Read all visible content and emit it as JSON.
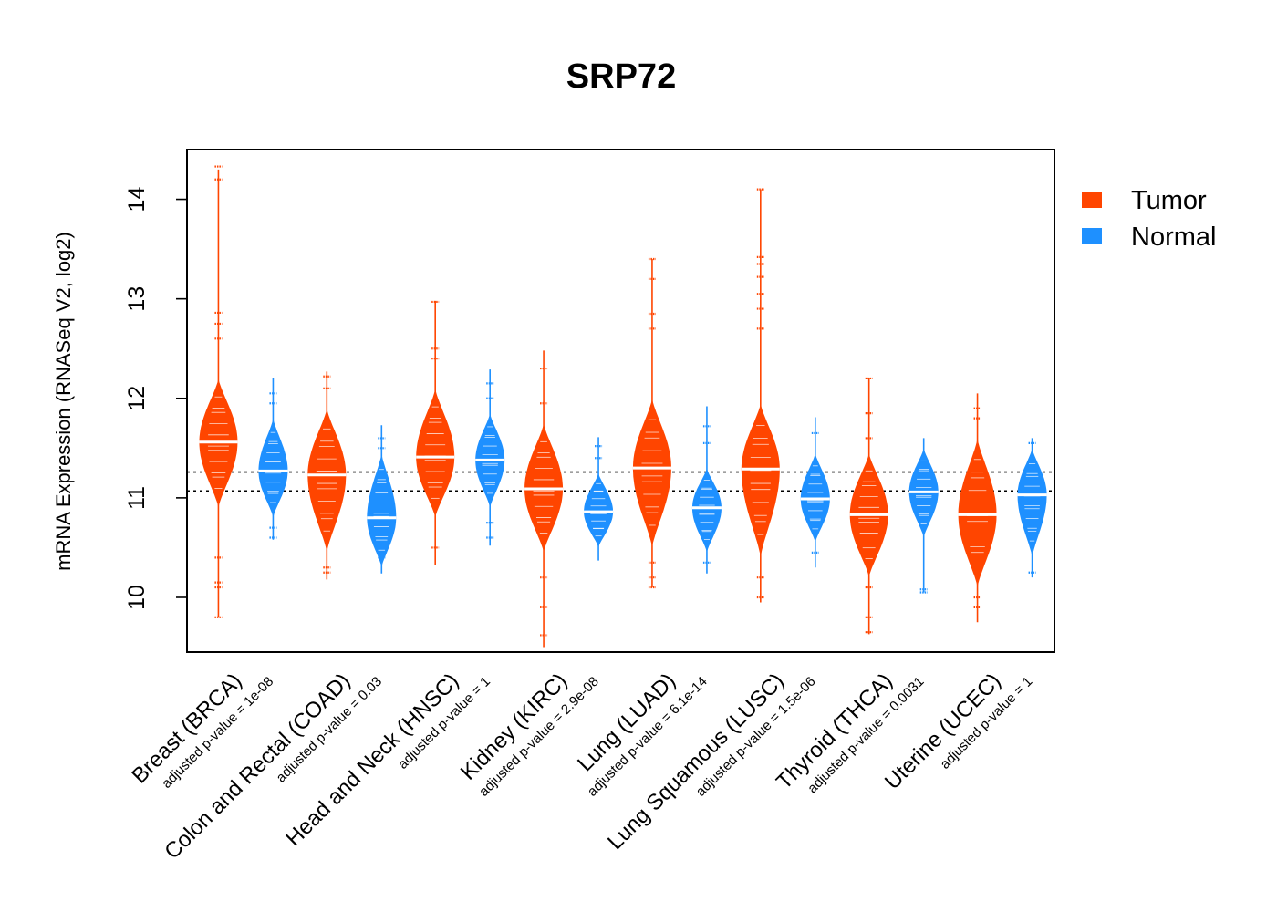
{
  "chart_data": {
    "type": "beanplot",
    "title": "SRP72",
    "xlabel": "",
    "ylabel": "mRNA Expression (RNASeq V2, log2)",
    "ylim": [
      9.45,
      14.5
    ],
    "yticks": [
      10,
      11,
      12,
      13,
      14
    ],
    "grid": false,
    "reference_lines": [
      11.26,
      11.07
    ],
    "legend": {
      "position": "right",
      "entries": [
        {
          "name": "Tumor",
          "color": "#FF4500"
        },
        {
          "name": "Normal",
          "color": "#1E90FF"
        }
      ]
    },
    "categories": [
      {
        "label": "Breast (BRCA)",
        "pvalue": "adjusted p-value = 1e-08"
      },
      {
        "label": "Colon and Rectal (COAD)",
        "pvalue": "adjusted p-value = 0.03"
      },
      {
        "label": "Head and Neck (HNSC)",
        "pvalue": "adjusted p-value = 1"
      },
      {
        "label": "Kidney (KIRC)",
        "pvalue": "adjusted p-value = 2.9e-08"
      },
      {
        "label": "Lung (LUAD)",
        "pvalue": "adjusted p-value = 6.1e-14"
      },
      {
        "label": "Lung Squamous (LUSC)",
        "pvalue": "adjusted p-value = 1.5e-06"
      },
      {
        "label": "Thyroid (THCA)",
        "pvalue": "adjusted p-value = 0.0031"
      },
      {
        "label": "Uterine (UCEC)",
        "pvalue": "adjusted p-value = 1"
      }
    ],
    "series": [
      {
        "name": "Tumor",
        "color": "#FF4500",
        "distributions": [
          {
            "median": 11.56,
            "body_min": 10.9,
            "body_max": 12.2,
            "min": 9.8,
            "max": 14.3,
            "outliers": [
              14.33,
              14.2,
              12.86,
              12.75,
              12.6,
              10.4,
              10.15,
              10.1,
              9.8
            ]
          },
          {
            "median": 11.23,
            "body_min": 10.45,
            "body_max": 11.9,
            "min": 10.18,
            "max": 12.27,
            "outliers": [
              12.22,
              12.1,
              10.3,
              10.25
            ]
          },
          {
            "median": 11.41,
            "body_min": 10.8,
            "body_max": 12.1,
            "min": 10.33,
            "max": 12.98,
            "outliers": [
              12.97,
              12.5,
              12.4,
              10.5
            ]
          },
          {
            "median": 11.09,
            "body_min": 10.45,
            "body_max": 11.75,
            "min": 9.5,
            "max": 12.48,
            "outliers": [
              12.3,
              11.95,
              10.2,
              9.9,
              9.62
            ]
          },
          {
            "median": 11.3,
            "body_min": 10.5,
            "body_max": 12.0,
            "min": 10.1,
            "max": 13.4,
            "outliers": [
              13.4,
              13.2,
              12.85,
              12.7,
              10.35,
              10.2,
              10.1
            ]
          },
          {
            "median": 11.29,
            "body_min": 10.4,
            "body_max": 11.95,
            "min": 9.95,
            "max": 14.1,
            "outliers": [
              14.1,
              13.42,
              13.35,
              13.22,
              13.05,
              12.9,
              12.7,
              10.2,
              10.0
            ]
          },
          {
            "median": 10.83,
            "body_min": 10.2,
            "body_max": 11.45,
            "min": 9.63,
            "max": 12.2,
            "outliers": [
              12.2,
              11.85,
              11.6,
              10.1,
              9.8,
              9.65
            ]
          },
          {
            "median": 10.83,
            "body_min": 10.1,
            "body_max": 11.6,
            "min": 9.75,
            "max": 12.05,
            "outliers": [
              11.9,
              11.8,
              10.0,
              9.9
            ]
          }
        ]
      },
      {
        "name": "Normal",
        "color": "#1E90FF",
        "distributions": [
          {
            "median": 11.27,
            "body_min": 10.8,
            "body_max": 11.8,
            "min": 10.58,
            "max": 12.2,
            "outliers": [
              12.05,
              11.95,
              10.7,
              10.6
            ]
          },
          {
            "median": 10.8,
            "body_min": 10.3,
            "body_max": 11.45,
            "min": 10.24,
            "max": 11.73,
            "outliers": [
              11.6,
              11.5,
              10.4
            ]
          },
          {
            "median": 11.38,
            "body_min": 10.9,
            "body_max": 11.85,
            "min": 10.52,
            "max": 12.29,
            "outliers": [
              12.15,
              12.0,
              10.75,
              10.6
            ]
          },
          {
            "median": 10.86,
            "body_min": 10.5,
            "body_max": 11.25,
            "min": 10.37,
            "max": 11.61,
            "outliers": [
              11.52,
              11.4
            ]
          },
          {
            "median": 10.9,
            "body_min": 10.45,
            "body_max": 11.3,
            "min": 10.24,
            "max": 11.92,
            "outliers": [
              11.72,
              11.55,
              10.35
            ]
          },
          {
            "median": 10.99,
            "body_min": 10.55,
            "body_max": 11.45,
            "min": 10.3,
            "max": 11.81,
            "outliers": [
              11.65,
              10.45
            ]
          },
          {
            "median": 11.06,
            "body_min": 10.6,
            "body_max": 11.5,
            "min": 10.05,
            "max": 11.6,
            "outliers": [
              10.08,
              10.05
            ]
          },
          {
            "median": 11.03,
            "body_min": 10.4,
            "body_max": 11.5,
            "min": 10.2,
            "max": 11.6,
            "outliers": [
              11.55,
              10.25
            ]
          }
        ]
      }
    ]
  }
}
